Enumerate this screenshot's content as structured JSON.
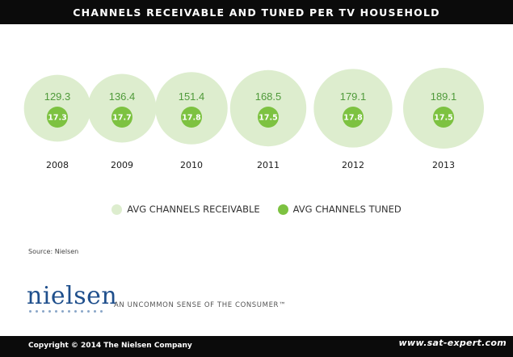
{
  "header": {
    "title": "CHANNELS RECEIVABLE AND TUNED PER TV HOUSEHOLD"
  },
  "chart_data": {
    "type": "bubble",
    "title": "CHANNELS RECEIVABLE AND TUNED PER TV HOUSEHOLD",
    "categories": [
      "2008",
      "2009",
      "2010",
      "2011",
      "2012",
      "2013"
    ],
    "series": [
      {
        "name": "AVG CHANNELS RECEIVABLE",
        "values": [
          129.3,
          136.4,
          151.4,
          168.5,
          179.1,
          189.1
        ],
        "labels": [
          "129.3",
          "136.4",
          "151.4",
          "168.5",
          "179.1",
          "189.1"
        ],
        "color": "#ddedce"
      },
      {
        "name": "AVG CHANNELS TUNED",
        "values": [
          17.3,
          17.7,
          17.8,
          17.5,
          17.8,
          17.5
        ],
        "labels": [
          "17.3",
          "17.7",
          "17.8",
          "17.5",
          "17.8",
          "17.5"
        ],
        "color": "#7dc241"
      }
    ],
    "legend_position": "bottom",
    "grid": false
  },
  "legend": {
    "receivable_label": "AVG CHANNELS RECEIVABLE",
    "tuned_label": "AVG CHANNELS TUNED"
  },
  "source": "Source: Nielsen",
  "brand": {
    "logo_text": "nielsen",
    "tagline": "AN UNCOMMON SENSE OF THE CONSUMER™"
  },
  "footer": {
    "copyright": "Copyright © 2014 The Nielsen Company",
    "watermark": "www.sat-expert.com"
  },
  "colors": {
    "receivable": "#ddedce",
    "tuned": "#7dc241",
    "value_text": "#4f9a3a",
    "brand_blue": "#1f4f8c",
    "bar_black": "#0b0b0b"
  }
}
